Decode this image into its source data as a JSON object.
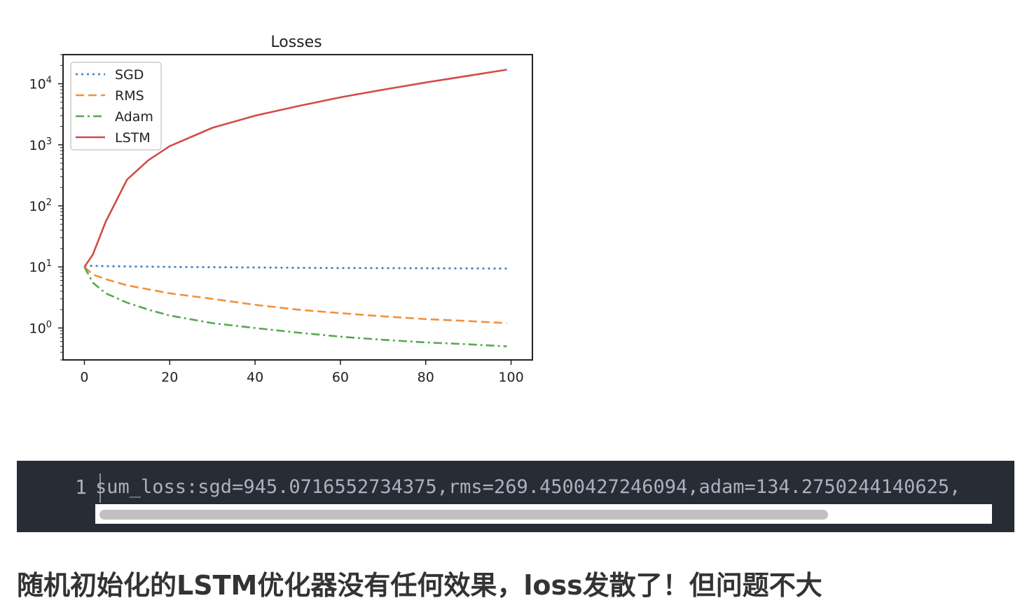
{
  "chart_data": {
    "type": "line",
    "title": "Losses",
    "xlabel": "",
    "ylabel": "",
    "y_scale": "log",
    "xlim": [
      -5,
      105
    ],
    "ylim": [
      0.3,
      30000
    ],
    "x_ticks": [
      0,
      20,
      40,
      60,
      80,
      100
    ],
    "y_ticks": [
      {
        "base": "10",
        "exp": "0",
        "value": 1
      },
      {
        "base": "10",
        "exp": "1",
        "value": 10
      },
      {
        "base": "10",
        "exp": "2",
        "value": 100
      },
      {
        "base": "10",
        "exp": "3",
        "value": 1000
      },
      {
        "base": "10",
        "exp": "4",
        "value": 10000
      }
    ],
    "grid": false,
    "legend_position": "top-left",
    "x": [
      0,
      2,
      5,
      10,
      15,
      20,
      30,
      40,
      50,
      60,
      70,
      80,
      90,
      99
    ],
    "series": [
      {
        "name": "SGD",
        "color": "#3b7ebf",
        "dash": "dotted",
        "values": [
          10.5,
          10.4,
          10.3,
          10.2,
          10.1,
          10.0,
          9.9,
          9.8,
          9.7,
          9.6,
          9.55,
          9.5,
          9.45,
          9.4
        ]
      },
      {
        "name": "RMS",
        "color": "#f0913a",
        "dash": "dashed",
        "values": [
          10,
          7.5,
          6.3,
          5.0,
          4.3,
          3.7,
          3.0,
          2.4,
          2.0,
          1.75,
          1.55,
          1.4,
          1.3,
          1.2
        ]
      },
      {
        "name": "Adam",
        "color": "#57a84e",
        "dash": "dashdot",
        "values": [
          10,
          5.5,
          3.7,
          2.6,
          2.0,
          1.6,
          1.2,
          1.0,
          0.84,
          0.72,
          0.64,
          0.58,
          0.54,
          0.5
        ]
      },
      {
        "name": "LSTM",
        "color": "#d14d47",
        "dash": "solid",
        "values": [
          10,
          16,
          55,
          270,
          560,
          950,
          1900,
          3000,
          4300,
          6000,
          8000,
          10500,
          13500,
          17000
        ]
      }
    ]
  },
  "code": {
    "line_number": "1",
    "text": "sum_loss:sgd=945.0716552734375,rms=269.4500427246094,adam=134.2750244140625,",
    "scroll_fraction": 0.82
  },
  "caption": "随机初始化的LSTM优化器没有任何效果，loss发散了！但问题不大"
}
